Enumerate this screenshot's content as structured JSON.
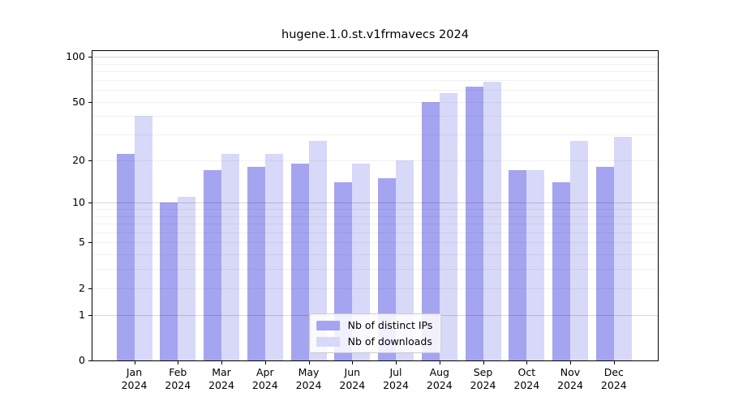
{
  "title": "hugene.1.0.st.v1frmavecs 2024",
  "chart_data": {
    "type": "bar",
    "title": "hugene.1.0.st.v1frmavecs 2024",
    "categories": [
      "Jan",
      "Feb",
      "Mar",
      "Apr",
      "May",
      "Jun",
      "Jul",
      "Aug",
      "Sep",
      "Oct",
      "Nov",
      "Dec"
    ],
    "category_year": "2024",
    "series": [
      {
        "name": "Nb of distinct IPs",
        "color": "#a4a4f0",
        "values": [
          22,
          10,
          17,
          18,
          19,
          14,
          15,
          50,
          63,
          17,
          14,
          18
        ]
      },
      {
        "name": "Nb of downloads",
        "color": "#d8d8f8",
        "values": [
          40,
          11,
          22,
          22,
          27,
          19,
          20,
          57,
          68,
          17,
          27,
          29
        ]
      }
    ],
    "y_scale": "log10(value+1)",
    "y_ticks": [
      0,
      1,
      2,
      5,
      10,
      20,
      50,
      100
    ],
    "y_major_grid": [
      1,
      10,
      100
    ],
    "y_minor_grid": [
      2,
      3,
      4,
      5,
      6,
      7,
      8,
      9,
      20,
      30,
      40,
      50,
      60,
      70,
      80,
      90
    ],
    "ylim": [
      0,
      110
    ],
    "grid": true,
    "legend_position": "lower center"
  },
  "colors": {
    "background": "#ffffff",
    "axis": "#000000",
    "bar_distinct_ips": "#a4a4f0",
    "bar_downloads": "#d8d8f8",
    "grid_minor": "rgba(0,0,0,0.055)",
    "grid_major": "rgba(0,0,0,0.16)",
    "legend_border": "#cccccc"
  }
}
